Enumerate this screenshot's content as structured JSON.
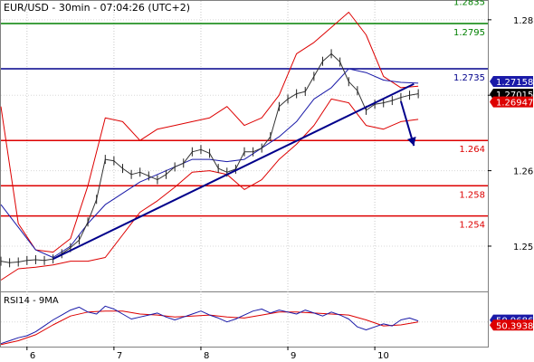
{
  "chart_data": {
    "type": "line",
    "title": "EUR/USD - 30min - 07:04:26 (UTC+2)",
    "ylim": [
      1.244,
      1.2825
    ],
    "price_ticks": [
      "1.28",
      "1.27",
      "1.26",
      "1.25"
    ],
    "price_tick_values": [
      1.28,
      1.27,
      1.26,
      1.25
    ],
    "date_ticks": [
      "6",
      "7",
      "8",
      "9",
      "10"
    ],
    "date_tick_positions": [
      0,
      10,
      20,
      30,
      40
    ],
    "x_range": [
      -3,
      53
    ],
    "horizontal_levels": [
      {
        "label": "1.2835",
        "value": 1.2835,
        "color": "#008000"
      },
      {
        "label": "1.2795",
        "value": 1.2795,
        "color": "#008000"
      },
      {
        "label": "1.2735",
        "value": 1.2735,
        "color": "#00008b"
      },
      {
        "label": "1.264",
        "value": 1.264,
        "color": "#dd0000"
      },
      {
        "label": "1.258",
        "value": 1.258,
        "color": "#dd0000"
      },
      {
        "label": "1.254",
        "value": 1.254,
        "color": "#dd0000"
      }
    ],
    "price_badges": [
      {
        "label": "1.27158",
        "value": 1.27158,
        "bg": "#1a1aa8",
        "fg": "#ffffff"
      },
      {
        "label": "1.27015",
        "value": 1.27015,
        "bg": "#000000",
        "fg": "#ffffff"
      },
      {
        "label": "1.26947",
        "value": 1.26947,
        "bg": "#dd0000",
        "fg": "#ffffff"
      }
    ],
    "trendline": {
      "x": [
        3,
        44.5
      ],
      "y": [
        1.2483,
        1.2715
      ],
      "color": "#00008b"
    },
    "forecast_arrow": {
      "x": [
        43,
        44.5
      ],
      "y": [
        1.2692,
        1.2633
      ],
      "color": "#00008b"
    },
    "price_series": {
      "x": [
        -3,
        -2,
        -1,
        0,
        1,
        2,
        3,
        4,
        5,
        6,
        7,
        8,
        9,
        10,
        11,
        12,
        13,
        14,
        15,
        16,
        17,
        18,
        19,
        20,
        21,
        22,
        23,
        24,
        25,
        26,
        27,
        28,
        29,
        30,
        31,
        32,
        33,
        34,
        35,
        36,
        37,
        38,
        39,
        40,
        41,
        42,
        43,
        44,
        45
      ],
      "y": [
        1.248,
        1.2478,
        1.2479,
        1.2481,
        1.2482,
        1.2481,
        1.2483,
        1.249,
        1.2498,
        1.2508,
        1.2532,
        1.2562,
        1.2615,
        1.2613,
        1.2603,
        1.2595,
        1.2598,
        1.2593,
        1.2588,
        1.2595,
        1.2605,
        1.261,
        1.2625,
        1.2628,
        1.2623,
        1.2603,
        1.2598,
        1.2602,
        1.2625,
        1.2625,
        1.263,
        1.2645,
        1.2685,
        1.2695,
        1.2702,
        1.2705,
        1.2725,
        1.2745,
        1.2755,
        1.2744,
        1.2718,
        1.2706,
        1.268,
        1.2688,
        1.269,
        1.2693,
        1.2697,
        1.27,
        1.2702
      ]
    },
    "ma_series": {
      "x": [
        -3,
        -1,
        1,
        3,
        5,
        7,
        9,
        11,
        13,
        15,
        17,
        19,
        21,
        23,
        25,
        27,
        29,
        31,
        33,
        35,
        37,
        39,
        41,
        43,
        45
      ],
      "y": [
        1.2555,
        1.2525,
        1.2495,
        1.2485,
        1.25,
        1.253,
        1.2555,
        1.257,
        1.2585,
        1.2595,
        1.2605,
        1.2615,
        1.2615,
        1.2612,
        1.2615,
        1.263,
        1.2645,
        1.2665,
        1.2695,
        1.271,
        1.2735,
        1.273,
        1.272,
        1.2717,
        1.2716
      ]
    },
    "bb_upper": {
      "x": [
        -3,
        -1,
        1,
        3,
        5,
        7,
        9,
        11,
        13,
        15,
        17,
        19,
        21,
        23,
        25,
        27,
        29,
        31,
        33,
        35,
        37,
        39,
        41,
        43,
        45
      ],
      "y": [
        1.2685,
        1.253,
        1.2495,
        1.2492,
        1.251,
        1.258,
        1.267,
        1.2665,
        1.264,
        1.2655,
        1.266,
        1.2665,
        1.267,
        1.2685,
        1.266,
        1.267,
        1.27,
        1.2755,
        1.277,
        1.279,
        1.281,
        1.278,
        1.2725,
        1.271,
        1.2712
      ]
    },
    "bb_lower": {
      "x": [
        -3,
        -1,
        1,
        3,
        5,
        7,
        9,
        11,
        13,
        15,
        17,
        19,
        21,
        23,
        25,
        27,
        29,
        31,
        33,
        35,
        37,
        39,
        41,
        43,
        45
      ],
      "y": [
        1.2455,
        1.247,
        1.2472,
        1.2475,
        1.248,
        1.248,
        1.2485,
        1.2515,
        1.2545,
        1.256,
        1.2578,
        1.2598,
        1.26,
        1.2595,
        1.2575,
        1.2588,
        1.2615,
        1.2635,
        1.266,
        1.2695,
        1.269,
        1.266,
        1.2655,
        1.2665,
        1.2668
      ]
    },
    "rsi_panel": {
      "label": "RSI14 - 9MA",
      "ylim": [
        25,
        80
      ],
      "badges": [
        {
          "label": "50.9686",
          "value": 50.9686,
          "bg": "#1a1aa8",
          "fg": "#ffffff"
        },
        {
          "label": "50.3938",
          "value": 50.3938,
          "bg": "#dd0000",
          "fg": "#ffffff"
        }
      ],
      "rsi": {
        "x": [
          -3,
          -2,
          -1,
          0,
          1,
          2,
          3,
          4,
          5,
          6,
          7,
          8,
          9,
          10,
          11,
          12,
          13,
          14,
          15,
          16,
          17,
          18,
          19,
          20,
          21,
          22,
          23,
          24,
          25,
          26,
          27,
          28,
          29,
          30,
          31,
          32,
          33,
          34,
          35,
          36,
          37,
          38,
          39,
          40,
          41,
          42,
          43,
          44,
          45
        ],
        "y": [
          28,
          31,
          34,
          36,
          40,
          46,
          52,
          57,
          62,
          65,
          60,
          58,
          66,
          63,
          58,
          53,
          55,
          57,
          59,
          55,
          52,
          55,
          58,
          61,
          57,
          54,
          50,
          53,
          57,
          61,
          63,
          59,
          62,
          60,
          58,
          62,
          59,
          56,
          60,
          57,
          53,
          45,
          42,
          45,
          48,
          46,
          52,
          54,
          51
        ]
      },
      "ma": {
        "x": [
          -3,
          -1,
          1,
          3,
          5,
          7,
          9,
          11,
          13,
          15,
          17,
          19,
          21,
          23,
          25,
          27,
          29,
          31,
          33,
          35,
          37,
          39,
          41,
          43,
          45
        ],
        "y": [
          27,
          31,
          37,
          47,
          56,
          60,
          61,
          61,
          58,
          57,
          55,
          56,
          57,
          55,
          54,
          57,
          60,
          60,
          59,
          58,
          57,
          52,
          46,
          47,
          50
        ]
      }
    }
  }
}
